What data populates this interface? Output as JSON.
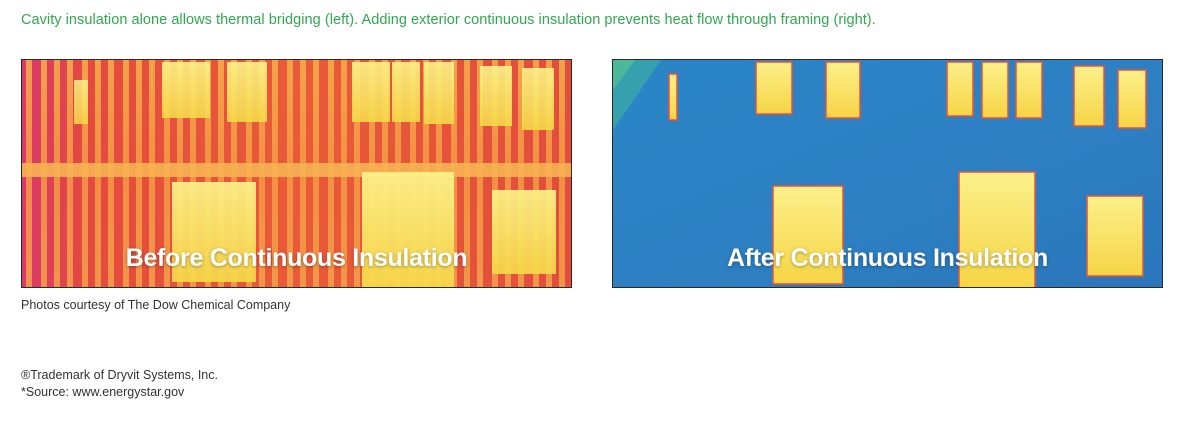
{
  "caption": "Cavity insulation alone allows thermal bridging (left). Adding exterior continuous insulation prevents heat flow through framing (right).",
  "photos": [
    {
      "label": "Before Continuous Insulation",
      "palette": {
        "base": "#e8533a",
        "stud": "#f7a24a",
        "window": "#f8e34a"
      }
    },
    {
      "label": "After Continuous Insulation",
      "palette": {
        "base": "#2f7fc4",
        "window": "#f8df4a",
        "edge": "#e8533a"
      }
    }
  ],
  "credit": "Photos courtesy of The Dow Chemical Company",
  "footnotes": {
    "trademark": "®Trademark of Dryvit Systems, Inc.",
    "source": "*Source: www.energystar.gov"
  }
}
